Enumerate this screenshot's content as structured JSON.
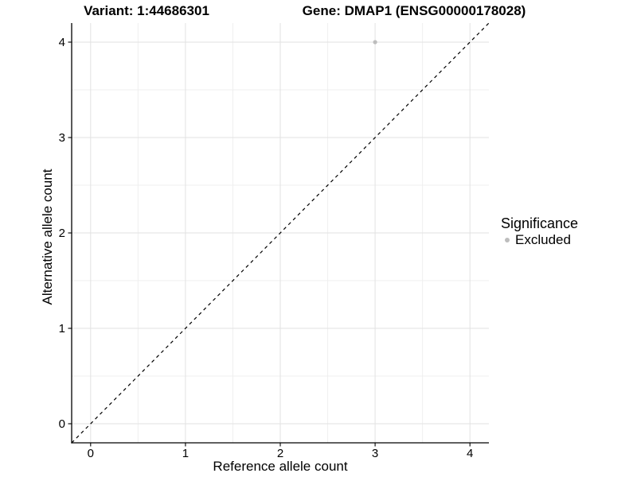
{
  "colors": {
    "background": "#ffffff",
    "point": "#bdbdbd",
    "grid_major": "#e2e2e2",
    "grid_minor": "#efefef",
    "axis": "#000000",
    "text": "#000000"
  },
  "chart_data": {
    "type": "scatter",
    "title_left": "Variant: 1:44686301",
    "title_right": "Gene: DMAP1 (ENSG00000178028)",
    "xlabel": "Reference allele count",
    "ylabel": "Alternative allele count",
    "legend_title": "Significance",
    "legend_position": "right",
    "xlim": [
      -0.2,
      4.2
    ],
    "ylim": [
      -0.2,
      4.2
    ],
    "x_ticks": [
      0,
      1,
      2,
      3,
      4
    ],
    "y_ticks": [
      0,
      1,
      2,
      3,
      4
    ],
    "x_minor_ticks": [
      0.5,
      1.5,
      2.5,
      3.5
    ],
    "y_minor_ticks": [
      0.5,
      1.5,
      2.5,
      3.5
    ],
    "grid": true,
    "series": [
      {
        "name": "Excluded",
        "color": "#bdbdbd",
        "marker": "circle",
        "points": [
          [
            3,
            4
          ]
        ]
      }
    ],
    "reference_line": {
      "kind": "identity y=x",
      "from": [
        -0.2,
        -0.2
      ],
      "to": [
        4.2,
        4.2
      ],
      "style": "dashed",
      "color": "#000000"
    }
  }
}
